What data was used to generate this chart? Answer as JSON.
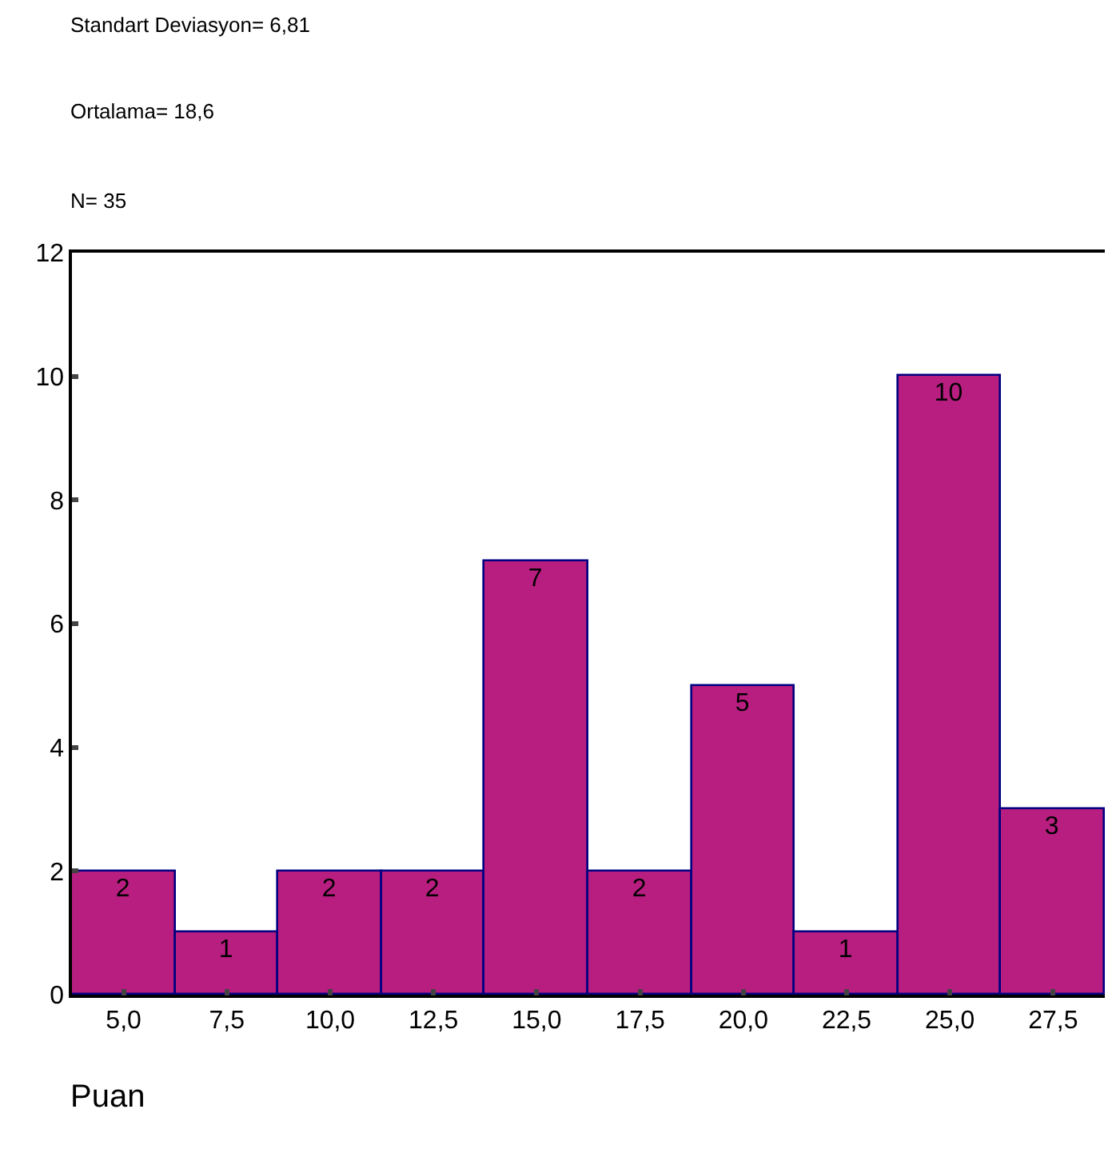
{
  "chart_data": {
    "type": "histogram",
    "annotations": [
      "Standart Deviasyon= 6,81",
      "Ortalama= 18,6",
      "N= 35"
    ],
    "xlabel": "Puan",
    "bins": [
      3.75,
      6.25,
      8.75,
      11.25,
      13.75,
      16.25,
      18.75,
      21.25,
      23.75,
      26.25,
      28.75
    ],
    "values": [
      2,
      1,
      2,
      2,
      7,
      2,
      5,
      1,
      10,
      3
    ],
    "color": "#b81e80",
    "xlim": [
      3.75,
      28.75
    ],
    "xticks": [
      {
        "value": 5,
        "label": "5,0"
      },
      {
        "value": 7.5,
        "label": "7,5"
      },
      {
        "value": 10,
        "label": "10,0"
      },
      {
        "value": 12.5,
        "label": "12,5"
      },
      {
        "value": 15,
        "label": "15,0"
      },
      {
        "value": 17.5,
        "label": "17,5"
      },
      {
        "value": 20,
        "label": "20,0"
      },
      {
        "value": 22.5,
        "label": "22,5"
      },
      {
        "value": 25,
        "label": "25,0"
      },
      {
        "value": 27.5,
        "label": "27,5"
      }
    ],
    "ylim": [
      0,
      12
    ],
    "yticks": [
      0,
      2,
      4,
      6,
      8,
      10,
      12
    ],
    "data_labels": true,
    "grid": false,
    "legend": false
  }
}
